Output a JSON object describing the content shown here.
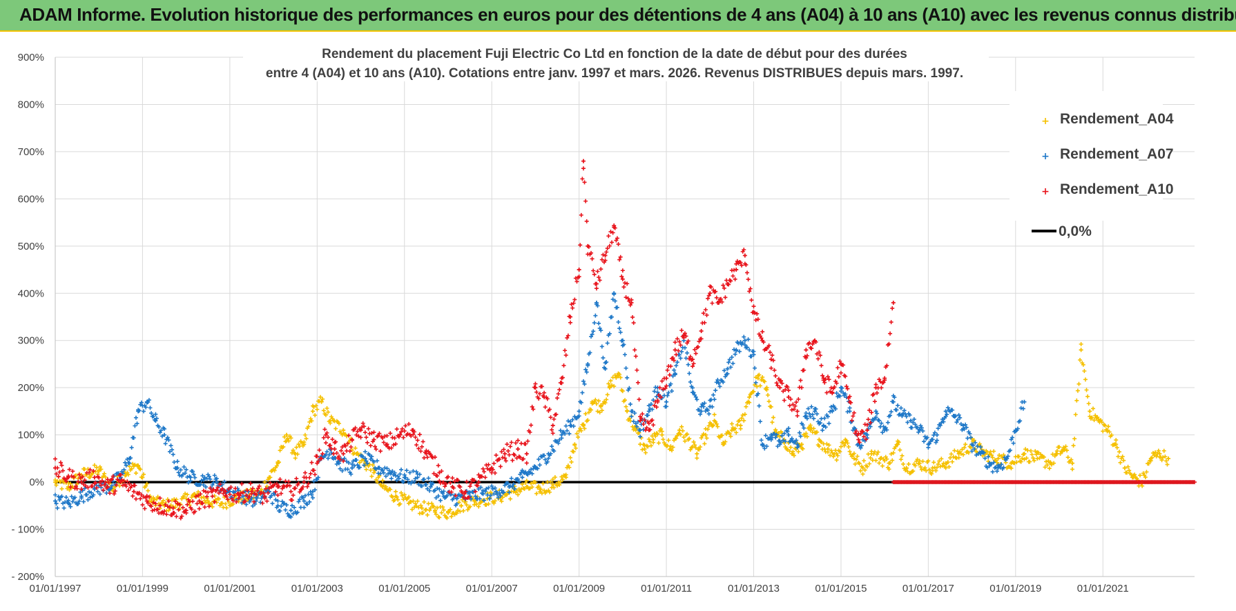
{
  "banner": {
    "title": "ADAM Informe. Evolution historique des performances en euros pour des détentions de 4 ans (A04) à 10 ans (A10) avec les revenus connus distribués"
  },
  "colors": {
    "banner_bg": "#7dc87a",
    "banner_border": "#f2c200",
    "A04": "#f5c000",
    "A07": "#1f78c8",
    "A10": "#e8141c",
    "zero_line": "#000000",
    "grid": "#d9d9d9",
    "axis_text": "#404040"
  },
  "chart_data": {
    "type": "scatter",
    "title_line1": "Rendement du placement Fuji Electric Co Ltd en fonction de la date de début pour des durées",
    "title_line2": "entre 4 (A04) et 10 ans (A10).  Cotations entre janv. 1997 et mars. 2026. Revenus DISTRIBUES depuis mars. 1997.",
    "x_range": [
      1997.0,
      2023.1
    ],
    "ylim": [
      -200,
      900
    ],
    "y_ticks": [
      -200,
      -100,
      0,
      100,
      200,
      300,
      400,
      500,
      600,
      700,
      800,
      900
    ],
    "y_tick_labels": [
      "- 200%",
      "- 100%",
      "0%",
      "100%",
      "200%",
      "300%",
      "400%",
      "500%",
      "600%",
      "700%",
      "800%",
      "900%"
    ],
    "x_ticks": [
      1997,
      1999,
      2001,
      2003,
      2005,
      2007,
      2009,
      2011,
      2013,
      2015,
      2017,
      2019,
      2021
    ],
    "x_tick_labels": [
      "01/01/1997",
      "01/01/1999",
      "01/01/2001",
      "01/01/2003",
      "01/01/2005",
      "01/01/2007",
      "01/01/2009",
      "01/01/2011",
      "01/01/2013",
      "01/01/2015",
      "01/01/2017",
      "01/01/2019",
      "01/01/2021"
    ],
    "legend": [
      "Rendement_A04",
      "Rendement_A07",
      "Rendement_A10",
      "0,0%"
    ],
    "series": [
      {
        "name": "Rendement_A04",
        "x": [
          1997.0,
          1997.3,
          1997.6,
          1998.0,
          1998.3,
          1998.6,
          1998.9,
          1999.2,
          1999.5,
          1999.8,
          2000.2,
          2000.5,
          2000.8,
          2001.1,
          2001.4,
          2001.7,
          2001.9,
          2002.1,
          2002.3,
          2002.5,
          2002.7,
          2002.9,
          2003.1,
          2003.3,
          2003.6,
          2003.9,
          2004.1,
          2004.3,
          2004.5,
          2004.8,
          2005.1,
          2005.4,
          2005.7,
          2006.0,
          2006.3,
          2006.6,
          2006.9,
          2007.2,
          2007.5,
          2007.8,
          2008.1,
          2008.4,
          2008.7,
          2008.9,
          2009.1,
          2009.3,
          2009.5,
          2009.7,
          2009.9,
          2010.1,
          2010.3,
          2010.5,
          2010.7,
          2010.9,
          2011.1,
          2011.3,
          2011.5,
          2011.7,
          2011.9,
          2012.1,
          2012.3,
          2012.5,
          2012.7,
          2012.9,
          2013.1,
          2013.3,
          2013.5,
          2013.7,
          2013.9,
          2014.1,
          2014.3,
          2014.5,
          2014.7,
          2014.9,
          2015.1,
          2015.3,
          2015.5,
          2015.7,
          2015.9,
          2016.1,
          2016.3,
          2016.5,
          2016.8,
          2017.1,
          2017.4,
          2017.7,
          2018.0,
          2018.3,
          2018.6,
          2018.9,
          2019.2,
          2019.5,
          2019.8,
          2019.95,
          2020.1,
          2020.3,
          2020.5,
          2020.7,
          2020.9,
          2021.1,
          2021.3,
          2021.5,
          2021.7,
          2021.9,
          2022.1,
          2022.3,
          2022.5
        ],
        "values": [
          0,
          -10,
          15,
          25,
          -15,
          20,
          35,
          -40,
          -50,
          -45,
          -30,
          -40,
          -45,
          -35,
          -30,
          -25,
          10,
          40,
          100,
          60,
          80,
          150,
          170,
          130,
          110,
          60,
          40,
          20,
          -10,
          -30,
          -45,
          -55,
          -60,
          -65,
          -50,
          -40,
          -35,
          -30,
          -20,
          -10,
          -15,
          -5,
          10,
          80,
          120,
          170,
          160,
          200,
          230,
          150,
          110,
          70,
          90,
          100,
          70,
          110,
          90,
          60,
          100,
          130,
          80,
          110,
          120,
          180,
          220,
          200,
          100,
          90,
          60,
          80,
          110,
          90,
          70,
          60,
          90,
          50,
          30,
          60,
          50,
          40,
          80,
          30,
          40,
          30,
          40,
          60,
          80,
          60,
          50,
          40,
          60,
          50,
          40,
          60,
          70,
          40,
          280,
          150,
          130,
          110,
          80,
          30,
          10,
          0,
          50,
          60,
          50
        ],
        "range": [
          -70,
          290
        ]
      },
      {
        "name": "Rendement_A07",
        "x": [
          1997.0,
          1997.3,
          1997.6,
          1997.9,
          1998.2,
          1998.5,
          1998.7,
          1998.9,
          1999.1,
          1999.3,
          1999.5,
          1999.8,
          2000.1,
          2000.4,
          2000.7,
          2001.0,
          2001.3,
          2001.6,
          2001.9,
          2002.1,
          2002.4,
          2002.7,
          2002.9,
          2003.1,
          2003.3,
          2003.5,
          2003.8,
          2004.1,
          2004.4,
          2004.7,
          2005.0,
          2005.3,
          2005.6,
          2005.9,
          2006.2,
          2006.5,
          2006.8,
          2007.1,
          2007.4,
          2007.7,
          2008.0,
          2008.3,
          2008.6,
          2008.8,
          2009.0,
          2009.2,
          2009.4,
          2009.6,
          2009.8,
          2010.0,
          2010.2,
          2010.4,
          2010.6,
          2010.8,
          2011.0,
          2011.2,
          2011.4,
          2011.6,
          2011.8,
          2012.0,
          2012.2,
          2012.4,
          2012.6,
          2012.8,
          2013.0,
          2013.2,
          2013.4,
          2013.6,
          2013.8,
          2014.0,
          2014.2,
          2014.4,
          2014.6,
          2014.8,
          2015.0,
          2015.2,
          2015.4,
          2015.6,
          2015.8,
          2016.0,
          2016.2,
          2016.4,
          2016.6,
          2016.8,
          2017.0,
          2017.2,
          2017.4,
          2017.6,
          2017.8,
          2018.0,
          2018.2,
          2018.4,
          2018.6,
          2018.8,
          2019.0,
          2019.2
        ],
        "values": [
          -40,
          -45,
          -30,
          -15,
          -10,
          10,
          50,
          150,
          170,
          130,
          100,
          30,
          10,
          5,
          0,
          -20,
          -30,
          -40,
          -20,
          -50,
          -60,
          -40,
          -20,
          50,
          70,
          40,
          30,
          50,
          30,
          20,
          10,
          10,
          -10,
          -30,
          -35,
          -30,
          -25,
          -20,
          -10,
          10,
          30,
          60,
          100,
          120,
          150,
          250,
          380,
          240,
          400,
          300,
          150,
          110,
          150,
          200,
          170,
          230,
          300,
          190,
          150,
          160,
          210,
          240,
          280,
          300,
          270,
          80,
          100,
          80,
          100,
          80,
          140,
          150,
          120,
          150,
          200,
          150,
          80,
          100,
          150,
          110,
          170,
          140,
          130,
          110,
          80,
          100,
          150,
          140,
          120,
          80,
          60,
          40,
          30,
          50,
          110,
          170
        ],
        "range": [
          -70,
          440
        ]
      },
      {
        "name": "Rendement_A10",
        "x": [
          1997.0,
          1997.3,
          1997.6,
          1997.9,
          1998.2,
          1998.5,
          1998.8,
          1999.1,
          1999.4,
          1999.7,
          2000.0,
          2000.3,
          2000.6,
          2000.9,
          2001.2,
          2001.5,
          2001.8,
          2002.1,
          2002.4,
          2002.7,
          2003.0,
          2003.2,
          2003.4,
          2003.6,
          2003.8,
          2004.0,
          2004.3,
          2004.6,
          2004.9,
          2005.2,
          2005.5,
          2005.8,
          2006.1,
          2006.4,
          2006.7,
          2007.0,
          2007.3,
          2007.6,
          2007.8,
          2008.0,
          2008.2,
          2008.4,
          2008.6,
          2008.8,
          2009.0,
          2009.1,
          2009.2,
          2009.4,
          2009.6,
          2009.8,
          2010.0,
          2010.2,
          2010.4,
          2010.6,
          2010.8,
          2011.0,
          2011.2,
          2011.4,
          2011.6,
          2011.8,
          2012.0,
          2012.2,
          2012.4,
          2012.6,
          2012.8,
          2013.0,
          2013.2,
          2013.4,
          2013.6,
          2013.8,
          2014.0,
          2014.2,
          2014.4,
          2014.6,
          2014.8,
          2015.0,
          2015.2,
          2015.4,
          2015.6,
          2015.8,
          2016.0,
          2016.2
        ],
        "values": [
          30,
          10,
          0,
          10,
          -10,
          0,
          -20,
          -40,
          -50,
          -55,
          -60,
          -40,
          -30,
          -20,
          -25,
          -20,
          -30,
          -10,
          -20,
          0,
          40,
          100,
          70,
          60,
          90,
          110,
          90,
          80,
          100,
          110,
          60,
          20,
          -10,
          -20,
          0,
          30,
          60,
          70,
          60,
          200,
          180,
          120,
          210,
          350,
          450,
          680,
          500,
          420,
          480,
          540,
          430,
          380,
          130,
          110,
          170,
          220,
          280,
          310,
          260,
          320,
          400,
          380,
          420,
          450,
          480,
          360,
          300,
          260,
          200,
          180,
          150,
          280,
          300,
          220,
          190,
          250,
          170,
          90,
          110,
          200,
          220,
          380
        ],
        "range": [
          -70,
          790
        ]
      },
      {
        "name": "0,0%",
        "x": [
          1997.0,
          2023.1
        ],
        "values": [
          0,
          0
        ]
      }
    ]
  }
}
